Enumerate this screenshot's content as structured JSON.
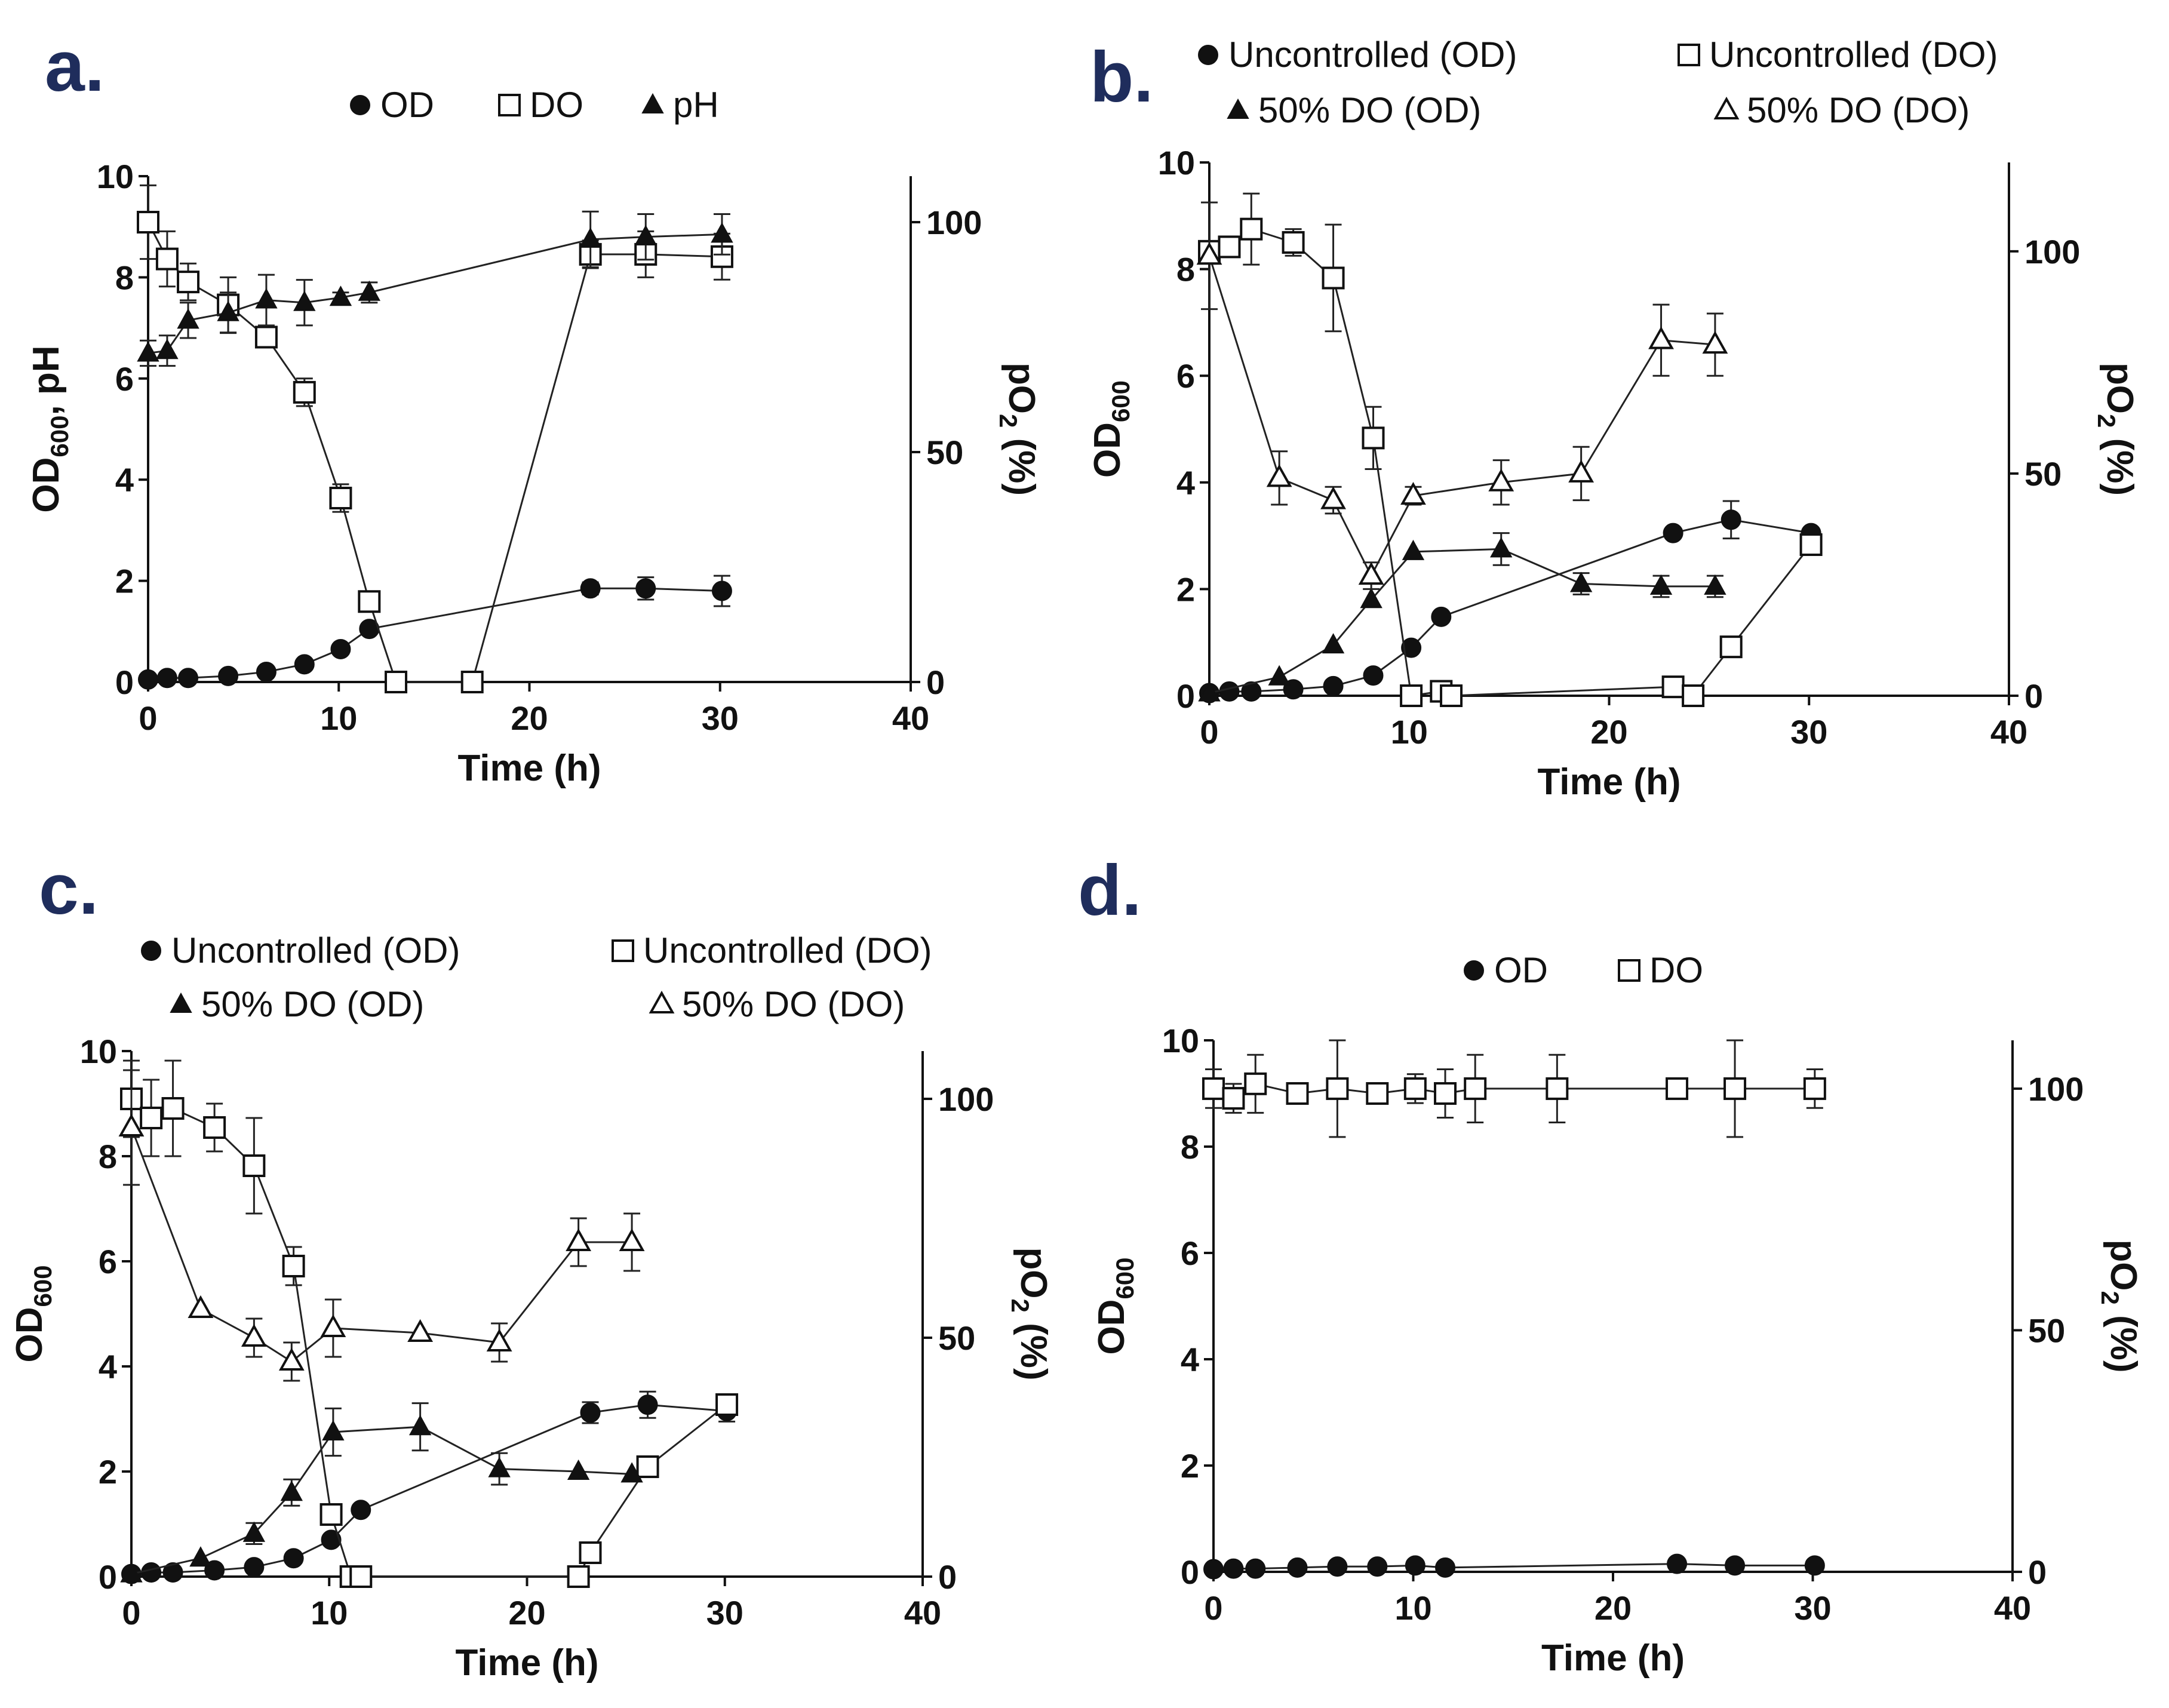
{
  "chart_data": [
    {
      "id": "a",
      "panel_label": "a.",
      "type": "line",
      "xlabel": "Time (h)",
      "ylabel": "OD600, pH",
      "ylabel_main": "OD",
      "ylabel_sub": "600",
      "ylabel_suffix": ", pH",
      "y2label": "pO2 (%)",
      "y2label_main": "pO",
      "y2label_sub": "2",
      "y2label_suffix": " (%)",
      "xlim": [
        0,
        40
      ],
      "ylim": [
        0,
        10
      ],
      "y2lim": [
        0,
        110
      ],
      "xticks": [
        0,
        10,
        20,
        30,
        40
      ],
      "yticks": [
        0,
        2,
        4,
        6,
        8,
        10
      ],
      "y2ticks": [
        0,
        50,
        100
      ],
      "legend": [
        {
          "label": "OD",
          "marker": "filled-circle"
        },
        {
          "label": "DO",
          "marker": "open-square"
        },
        {
          "label": "pH",
          "marker": "filled-triangle"
        }
      ],
      "series": [
        {
          "name": "OD",
          "axis": "left",
          "marker": "filled-circle",
          "x": [
            0,
            1,
            2.1,
            4.2,
            6.2,
            8.2,
            10.1,
            11.6,
            23.2,
            26.1,
            30.1
          ],
          "y": [
            0.05,
            0.08,
            0.08,
            0.12,
            0.2,
            0.35,
            0.65,
            1.05,
            1.85,
            1.85,
            1.8
          ],
          "err": [
            0,
            0,
            0,
            0,
            0,
            0,
            0,
            0,
            0.12,
            0.22,
            0.3
          ]
        },
        {
          "name": "DO",
          "axis": "right",
          "marker": "open-square",
          "x": [
            0,
            1,
            2.1,
            4.2,
            6.2,
            8.2,
            10.1,
            11.6,
            13,
            17,
            23.2,
            26.1,
            30.1
          ],
          "y": [
            100,
            92,
            87,
            82,
            75,
            63,
            40,
            17.5,
            0,
            0,
            93,
            93,
            92.5
          ],
          "err": [
            8,
            6,
            4,
            6,
            2,
            3,
            3,
            0,
            0,
            0,
            3,
            5,
            5
          ]
        },
        {
          "name": "pH",
          "axis": "left",
          "marker": "filled-triangle",
          "x": [
            0,
            1,
            2.1,
            4.2,
            6.2,
            8.2,
            10.1,
            11.6,
            23.2,
            26.1,
            30.1
          ],
          "y": [
            6.5,
            6.55,
            7.15,
            7.3,
            7.55,
            7.5,
            7.6,
            7.7,
            8.75,
            8.8,
            8.85
          ],
          "err": [
            0.25,
            0.3,
            0.35,
            0.4,
            0.5,
            0.45,
            0.1,
            0.2,
            0.55,
            0.45,
            0.4
          ]
        }
      ]
    },
    {
      "id": "b",
      "panel_label": "b.",
      "type": "line",
      "xlabel": "Time (h)",
      "ylabel": "OD600",
      "ylabel_main": "OD",
      "ylabel_sub": "600",
      "ylabel_suffix": "",
      "y2label": "pO2 (%)",
      "y2label_main": "pO",
      "y2label_sub": "2",
      "y2label_suffix": " (%)",
      "xlim": [
        0,
        40
      ],
      "ylim": [
        0,
        10
      ],
      "y2lim": [
        0,
        120
      ],
      "xticks": [
        0,
        10,
        20,
        30,
        40
      ],
      "yticks": [
        0,
        2,
        4,
        6,
        8,
        10
      ],
      "y2ticks": [
        0,
        50,
        100
      ],
      "legend": [
        {
          "label": "Uncontrolled (OD)",
          "marker": "filled-circle"
        },
        {
          "label": "Uncontrolled (DO)",
          "marker": "open-square"
        },
        {
          "label": "50% DO (OD)",
          "marker": "filled-triangle"
        },
        {
          "label": "50% DO (DO)",
          "marker": "open-triangle"
        }
      ],
      "series": [
        {
          "name": "Uncontrolled (OD)",
          "axis": "left",
          "marker": "filled-circle",
          "x": [
            0,
            1,
            2.1,
            4.2,
            6.2,
            8.2,
            10.1,
            11.6,
            23.2,
            26.1,
            30.1
          ],
          "y": [
            0.05,
            0.08,
            0.08,
            0.12,
            0.18,
            0.38,
            0.9,
            1.48,
            3.05,
            3.3,
            3.05
          ],
          "err": [
            0,
            0,
            0,
            0,
            0,
            0,
            0,
            0,
            0,
            0.35,
            0
          ]
        },
        {
          "name": "Uncontrolled (DO)",
          "axis": "right",
          "marker": "open-square",
          "x": [
            0,
            1,
            2.1,
            4.2,
            6.2,
            8.2,
            10.1,
            11.6,
            12.1,
            23.2,
            24.2,
            26.1,
            30.1
          ],
          "y": [
            100,
            101,
            105,
            102,
            94,
            58,
            0,
            1,
            0,
            2,
            0,
            11,
            34
          ],
          "err": [
            0,
            0,
            8,
            3,
            12,
            7,
            0,
            0,
            0,
            0,
            0,
            0,
            0
          ]
        },
        {
          "name": "50% DO (OD)",
          "axis": "left",
          "marker": "filled-triangle",
          "x": [
            0,
            3.5,
            6.2,
            8.1,
            10.2,
            14.6,
            18.6,
            22.6,
            25.3
          ],
          "y": [
            0.05,
            0.35,
            0.95,
            1.8,
            2.7,
            2.75,
            2.1,
            2.05,
            2.05
          ],
          "err": [
            0,
            0,
            0,
            0,
            0,
            0.3,
            0.2,
            0.2,
            0.2
          ]
        },
        {
          "name": "50% DO (DO)",
          "axis": "right",
          "marker": "open-triangle",
          "x": [
            0,
            3.5,
            6.2,
            8.1,
            10.2,
            14.6,
            18.6,
            22.6,
            25.3
          ],
          "y": [
            99,
            49,
            44,
            27,
            45,
            48,
            50,
            80,
            79
          ],
          "err": [
            12,
            6,
            3,
            3,
            2,
            5,
            6,
            8,
            7
          ]
        }
      ]
    },
    {
      "id": "c",
      "panel_label": "c.",
      "type": "line",
      "xlabel": "Time (h)",
      "ylabel": "OD600",
      "ylabel_main": "OD",
      "ylabel_sub": "600",
      "ylabel_suffix": "",
      "y2label": "pO2 (%)",
      "y2label_main": "pO",
      "y2label_sub": "2",
      "y2label_suffix": " (%)",
      "xlim": [
        0,
        40
      ],
      "ylim": [
        0,
        10
      ],
      "y2lim": [
        0,
        110
      ],
      "xticks": [
        0,
        10,
        20,
        30,
        40
      ],
      "yticks": [
        0,
        2,
        4,
        6,
        8,
        10
      ],
      "y2ticks": [
        0,
        50,
        100
      ],
      "legend": [
        {
          "label": "Uncontrolled (OD)",
          "marker": "filled-circle"
        },
        {
          "label": "Uncontrolled (DO)",
          "marker": "open-square"
        },
        {
          "label": "50% DO (OD)",
          "marker": "filled-triangle"
        },
        {
          "label": "50% DO (DO)",
          "marker": "open-triangle"
        }
      ],
      "series": [
        {
          "name": "Uncontrolled (OD)",
          "axis": "left",
          "marker": "filled-circle",
          "x": [
            0,
            1,
            2.1,
            4.2,
            6.2,
            8.2,
            10.1,
            11.6,
            23.2,
            26.1,
            30.1
          ],
          "y": [
            0.05,
            0.08,
            0.08,
            0.12,
            0.18,
            0.35,
            0.7,
            1.27,
            3.12,
            3.27,
            3.15
          ],
          "err": [
            0,
            0,
            0,
            0,
            0,
            0,
            0,
            0,
            0.2,
            0.25,
            0.2
          ]
        },
        {
          "name": "Uncontrolled (DO)",
          "axis": "right",
          "marker": "open-square",
          "x": [
            0,
            1,
            2.1,
            4.2,
            6.2,
            8.2,
            10.1,
            11.1,
            11.6,
            22.6,
            23.2,
            26.1,
            30.1
          ],
          "y": [
            100,
            96,
            98,
            94,
            86,
            65,
            13,
            0,
            0,
            0,
            5,
            23,
            36
          ],
          "err": [
            8,
            8,
            10,
            5,
            10,
            4,
            0,
            0,
            0,
            0,
            0,
            0,
            0
          ]
        },
        {
          "name": "50% DO (OD)",
          "axis": "left",
          "marker": "filled-triangle",
          "x": [
            0,
            3.5,
            6.2,
            8.1,
            10.2,
            14.6,
            18.6,
            22.6,
            25.3
          ],
          "y": [
            0.05,
            0.35,
            0.82,
            1.6,
            2.75,
            2.85,
            2.05,
            2.0,
            1.95
          ],
          "err": [
            0,
            0,
            0.2,
            0.25,
            0.45,
            0.45,
            0.3,
            0,
            0
          ]
        },
        {
          "name": "50% DO (DO)",
          "axis": "right",
          "marker": "open-triangle",
          "x": [
            0,
            3.5,
            6.2,
            8.1,
            10.2,
            14.6,
            18.6,
            22.6,
            25.3
          ],
          "y": [
            94,
            56,
            50,
            45,
            52,
            51,
            49,
            70,
            70
          ],
          "err": [
            12,
            0,
            4,
            4,
            6,
            0,
            4,
            5,
            6
          ]
        }
      ]
    },
    {
      "id": "d",
      "panel_label": "d.",
      "type": "line",
      "xlabel": "Time (h)",
      "ylabel": "OD600",
      "ylabel_main": "OD",
      "ylabel_sub": "600",
      "ylabel_suffix": "",
      "y2label": "pO2 (%)",
      "y2label_main": "pO",
      "y2label_sub": "2",
      "y2label_suffix": " (%)",
      "xlim": [
        0,
        40
      ],
      "ylim": [
        0,
        10
      ],
      "y2lim": [
        0,
        110
      ],
      "xticks": [
        0,
        10,
        20,
        30,
        40
      ],
      "yticks": [
        0,
        2,
        4,
        6,
        8,
        10
      ],
      "y2ticks": [
        0,
        50,
        100
      ],
      "legend": [
        {
          "label": "OD",
          "marker": "filled-circle"
        },
        {
          "label": "DO",
          "marker": "open-square"
        }
      ],
      "series": [
        {
          "name": "OD",
          "axis": "left",
          "marker": "filled-circle",
          "x": [
            0,
            1,
            2.1,
            4.2,
            6.2,
            8.2,
            10.1,
            11.6,
            23.2,
            26.1,
            30.1
          ],
          "y": [
            0.05,
            0.06,
            0.06,
            0.08,
            0.1,
            0.1,
            0.12,
            0.08,
            0.15,
            0.12,
            0.12
          ],
          "err": [
            0,
            0,
            0,
            0,
            0,
            0,
            0,
            0,
            0,
            0,
            0
          ]
        },
        {
          "name": "DO",
          "axis": "right",
          "marker": "open-square",
          "x": [
            0,
            1,
            2.1,
            4.2,
            6.2,
            8.2,
            10.1,
            11.6,
            13.1,
            17.2,
            23.2,
            26.1,
            30.1
          ],
          "y": [
            100,
            98,
            101,
            99,
            100,
            99,
            100,
            99,
            100,
            100,
            100,
            100,
            100
          ],
          "err": [
            4,
            3,
            6,
            0,
            10,
            0,
            3,
            5,
            7,
            7,
            2,
            10,
            4
          ]
        }
      ]
    }
  ]
}
